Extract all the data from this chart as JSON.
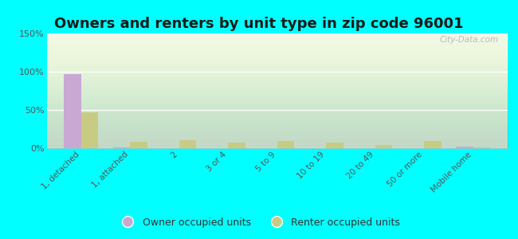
{
  "title": "Owners and renters by unit type in zip code 96001",
  "categories": [
    "1, detached",
    "1, attached",
    "2",
    "3 or 4",
    "5 to 9",
    "10 to 19",
    "20 to 49",
    "50 or more",
    "Mobile home"
  ],
  "owner_values": [
    97,
    1,
    0,
    0,
    0,
    0,
    0,
    0,
    2
  ],
  "renter_values": [
    47,
    8,
    10,
    7,
    9,
    7,
    4,
    9,
    1
  ],
  "owner_color": "#c9a8d4",
  "renter_color": "#c8cc82",
  "background_color": "#00ffff",
  "ylim": [
    0,
    150
  ],
  "yticks": [
    0,
    50,
    100,
    150
  ],
  "ytick_labels": [
    "0%",
    "50%",
    "100%",
    "150%"
  ],
  "bar_width": 0.35,
  "title_fontsize": 13,
  "legend_owner": "Owner occupied units",
  "legend_renter": "Renter occupied units",
  "watermark": "City-Data.com"
}
